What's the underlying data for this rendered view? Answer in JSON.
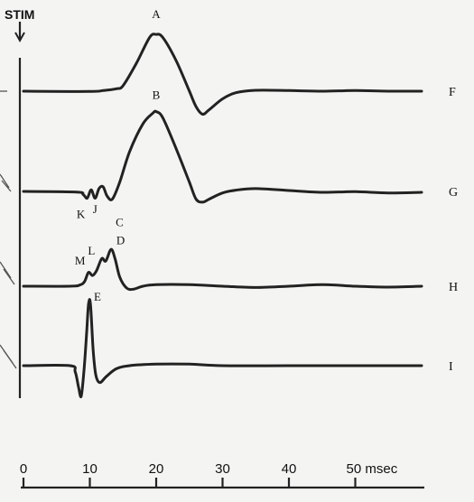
{
  "chart_data": {
    "type": "line",
    "title": "",
    "xlabel": "",
    "ylabel": "",
    "x_unit": "msec",
    "xlim": [
      0,
      60
    ],
    "xticks": [
      0,
      10,
      20,
      30,
      40,
      50
    ],
    "x_tick_labels": [
      "0",
      "10",
      "20",
      "30",
      "40",
      "50 msec"
    ],
    "stimulus_label": "STIM",
    "stimulus_x": 0,
    "series": [
      {
        "name": "F",
        "points": [
          [
            0,
            0
          ],
          [
            10,
            -0.1
          ],
          [
            12,
            0.2
          ],
          [
            14,
            0.8
          ],
          [
            15,
            1.8
          ],
          [
            17,
            9
          ],
          [
            19,
            17.5
          ],
          [
            20,
            18.5
          ],
          [
            21,
            17.5
          ],
          [
            23,
            10
          ],
          [
            25,
            0
          ],
          [
            26,
            -5
          ],
          [
            27,
            -7.5
          ],
          [
            28,
            -6
          ],
          [
            30,
            -2.5
          ],
          [
            32,
            -0.5
          ],
          [
            35,
            0.3
          ],
          [
            40,
            0.2
          ],
          [
            45,
            0
          ],
          [
            50,
            0.2
          ],
          [
            55,
            0
          ],
          [
            60,
            0
          ]
        ],
        "peaks": [
          {
            "label": "A",
            "x": 20
          }
        ]
      },
      {
        "name": "G",
        "points": [
          [
            0,
            0
          ],
          [
            8,
            -0.2
          ],
          [
            9,
            -1
          ],
          [
            9.6,
            -2.2
          ],
          [
            10.2,
            0.5
          ],
          [
            10.8,
            -2.2
          ],
          [
            11.4,
            1
          ],
          [
            12,
            1.5
          ],
          [
            12.6,
            -1.5
          ],
          [
            13.4,
            -2.5
          ],
          [
            14.5,
            3
          ],
          [
            16,
            13
          ],
          [
            18,
            22
          ],
          [
            19.5,
            25.5
          ],
          [
            20,
            26
          ],
          [
            21,
            24
          ],
          [
            23,
            14
          ],
          [
            25,
            3
          ],
          [
            26,
            -2.5
          ],
          [
            27,
            -3.5
          ],
          [
            28,
            -2.5
          ],
          [
            30,
            -0.5
          ],
          [
            32,
            0.4
          ],
          [
            35,
            0.9
          ],
          [
            40,
            0.3
          ],
          [
            45,
            -0.3
          ],
          [
            50,
            -0.1
          ],
          [
            55,
            -0.5
          ],
          [
            60,
            -0.3
          ]
        ],
        "peaks": [
          {
            "label": "K",
            "x": 9.6
          },
          {
            "label": "J",
            "x": 11.2
          },
          {
            "label": "C",
            "x": 13.4
          },
          {
            "label": "B",
            "x": 20
          }
        ]
      },
      {
        "name": "H",
        "points": [
          [
            0,
            0
          ],
          [
            7,
            0
          ],
          [
            8.5,
            0.4
          ],
          [
            9.2,
            1.5
          ],
          [
            9.8,
            4.5
          ],
          [
            10.4,
            3.5
          ],
          [
            11,
            5
          ],
          [
            11.8,
            9
          ],
          [
            12.4,
            8.2
          ],
          [
            13.2,
            12
          ],
          [
            13.8,
            9
          ],
          [
            14.5,
            3
          ],
          [
            15.5,
            -0.5
          ],
          [
            16.5,
            -1
          ],
          [
            18,
            0
          ],
          [
            20,
            0.5
          ],
          [
            25,
            0.5
          ],
          [
            30,
            0
          ],
          [
            35,
            -0.4
          ],
          [
            40,
            0
          ],
          [
            45,
            0.5
          ],
          [
            50,
            0
          ],
          [
            55,
            -0.3
          ],
          [
            60,
            0
          ]
        ],
        "peaks": [
          {
            "label": "M",
            "x": 9.6
          },
          {
            "label": "L",
            "x": 11.6
          },
          {
            "label": "D",
            "x": 13
          }
        ]
      },
      {
        "name": "I",
        "points": [
          [
            0,
            0
          ],
          [
            7,
            0
          ],
          [
            7.8,
            -2
          ],
          [
            8.3,
            -7
          ],
          [
            8.7,
            -10
          ],
          [
            9.1,
            -2
          ],
          [
            9.5,
            10
          ],
          [
            9.8,
            20
          ],
          [
            10.1,
            20
          ],
          [
            10.5,
            5
          ],
          [
            10.9,
            -3
          ],
          [
            11.5,
            -5.5
          ],
          [
            12.5,
            -3.5
          ],
          [
            14,
            -1
          ],
          [
            16,
            0
          ],
          [
            20,
            0.5
          ],
          [
            25,
            0.5
          ],
          [
            30,
            0
          ],
          [
            40,
            0
          ],
          [
            50,
            0
          ],
          [
            60,
            0
          ]
        ],
        "peaks": [
          {
            "label": "E",
            "x": 9.8
          }
        ]
      }
    ]
  }
}
